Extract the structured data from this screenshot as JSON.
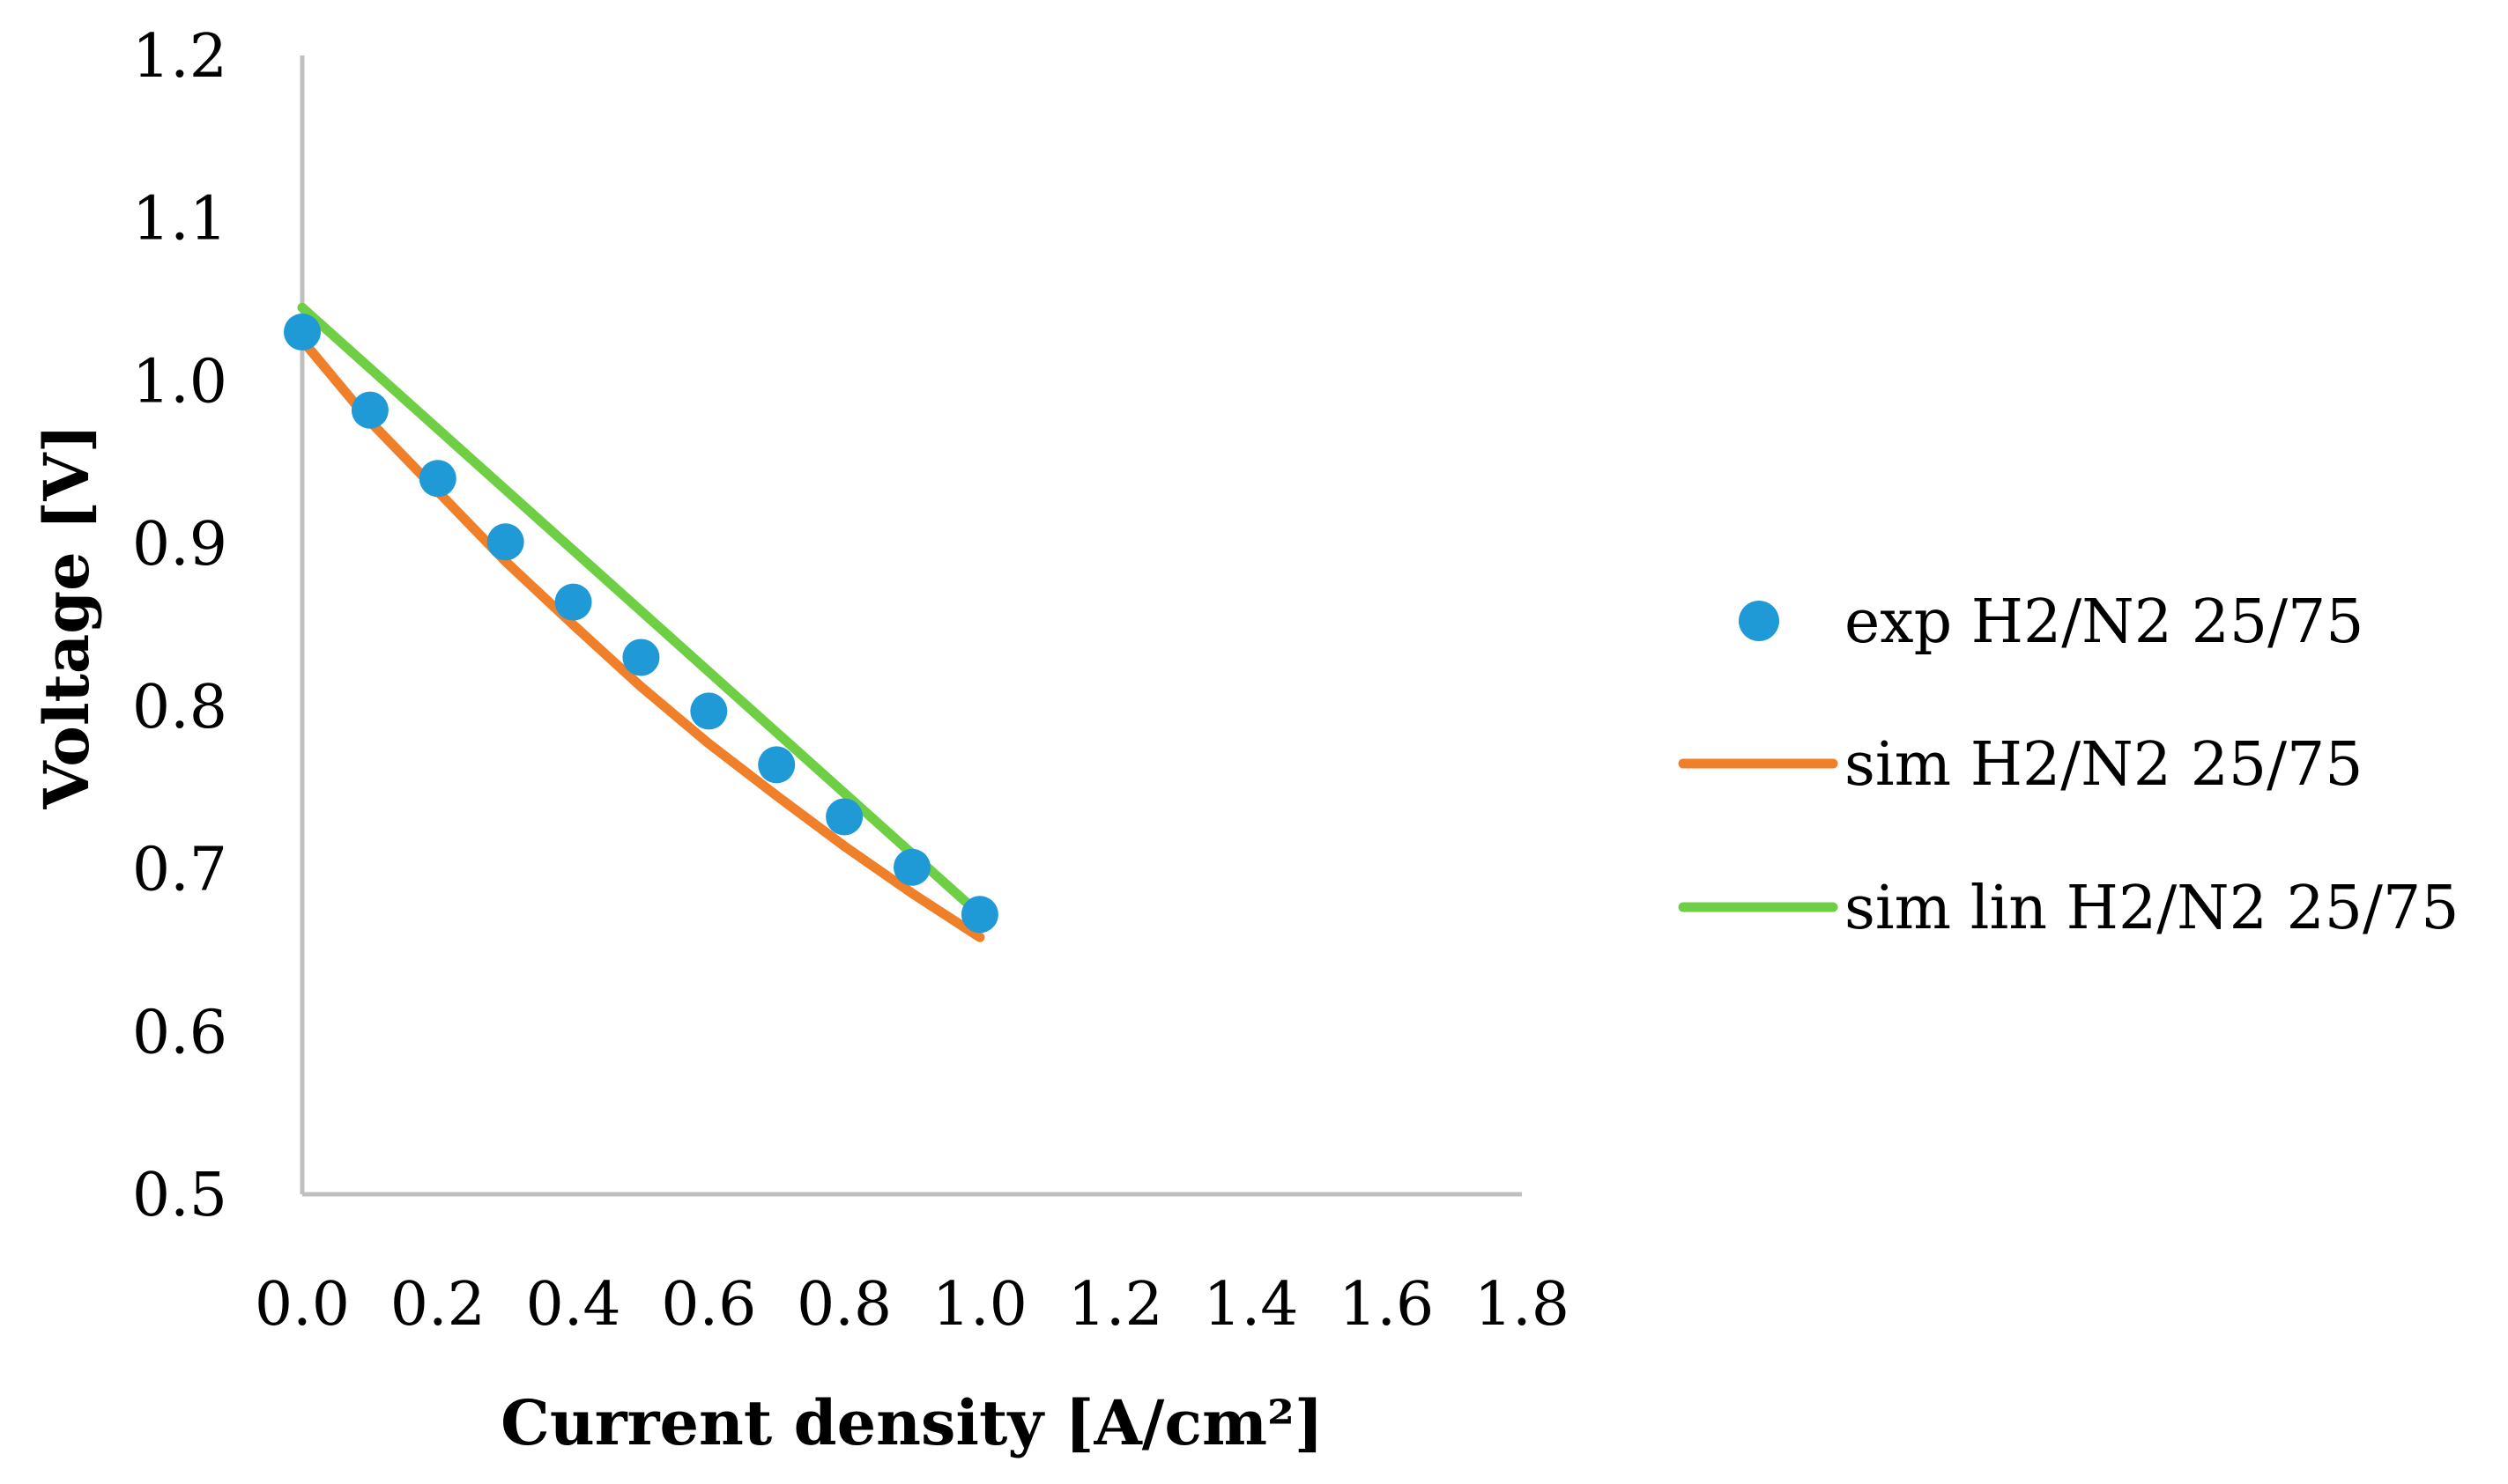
{
  "chart_data": {
    "type": "scatter",
    "title": "",
    "xlabel": "Current density [A/cm²]",
    "ylabel": "Voltage [V]",
    "xlim": [
      0,
      1.8
    ],
    "ylim": [
      0.5,
      1.2
    ],
    "x_ticks": [
      "0.0",
      "0.2",
      "0.4",
      "0.6",
      "0.8",
      "1.0",
      "1.2",
      "1.4",
      "1.6",
      "1.8"
    ],
    "y_ticks": [
      "0.5",
      "0.6",
      "0.7",
      "0.8",
      "0.9",
      "1.0",
      "1.1",
      "1.2"
    ],
    "grid": false,
    "legend_position": "right",
    "series": [
      {
        "name": "exp H2/N2 25/75",
        "kind": "scatter",
        "color": "#1f9ad6",
        "x": [
          0.0,
          0.1,
          0.2,
          0.3,
          0.4,
          0.5,
          0.6,
          0.7,
          0.8,
          0.9,
          1.0
        ],
        "y": [
          1.03,
          0.982,
          0.94,
          0.901,
          0.864,
          0.83,
          0.797,
          0.764,
          0.732,
          0.701,
          0.672
        ]
      },
      {
        "name": "sim H2/N2 25/75",
        "kind": "line",
        "color": "#f07f2a",
        "x": [
          0.0,
          0.1,
          0.2,
          0.3,
          0.4,
          0.5,
          0.6,
          0.7,
          0.8,
          0.9,
          1.0
        ],
        "y": [
          1.025,
          0.975,
          0.932,
          0.889,
          0.85,
          0.812,
          0.777,
          0.745,
          0.714,
          0.685,
          0.658
        ]
      },
      {
        "name": "sim lin H2/N2 25/75",
        "kind": "line",
        "color": "#6ecf45",
        "x": [
          0.0,
          1.0
        ],
        "y": [
          1.045,
          0.672
        ]
      }
    ]
  }
}
